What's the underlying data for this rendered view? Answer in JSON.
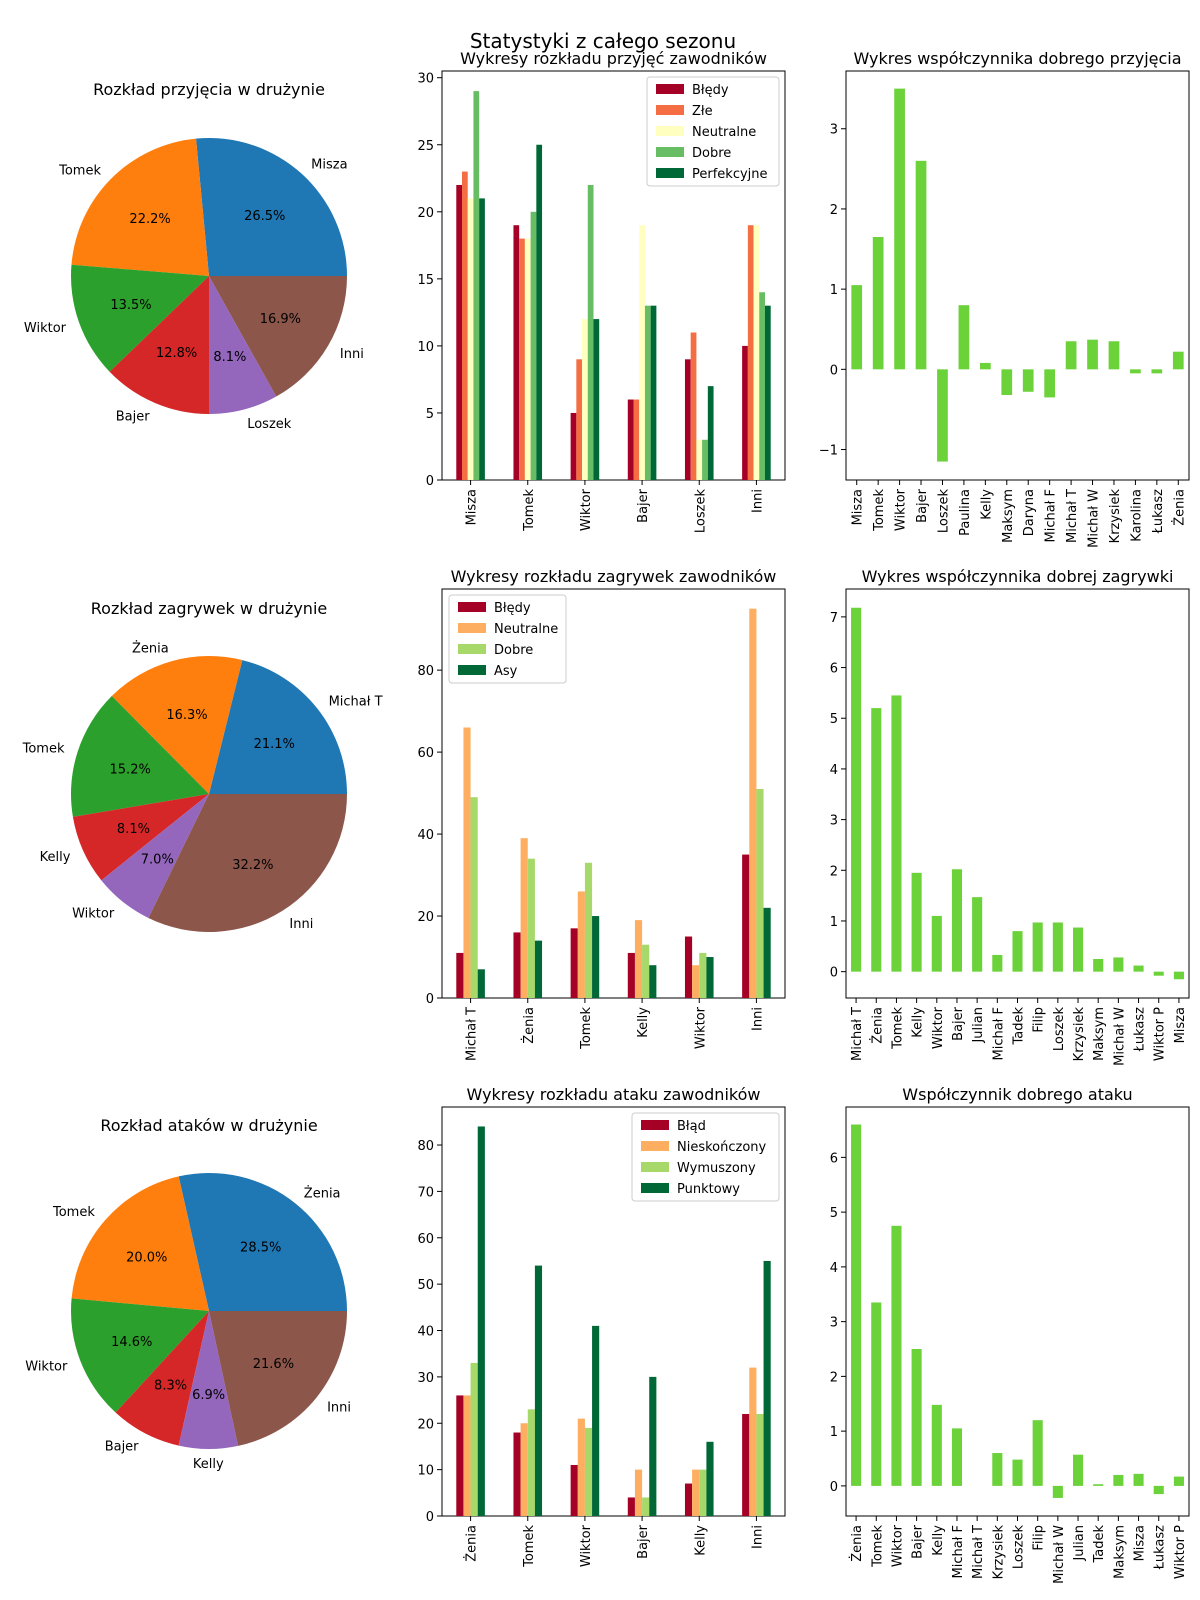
{
  "figure": {
    "suptitle": "Statystyki z całego sezonu"
  },
  "colors": {
    "pie": [
      "#1f77b4",
      "#ff7f0e",
      "#2ca02c",
      "#d62728",
      "#9467bd",
      "#8c564b"
    ],
    "reception": [
      "#a50026",
      "#f46d43",
      "#ffffbf",
      "#66bd63",
      "#006837"
    ],
    "four": [
      "#a50026",
      "#fdae61",
      "#a6d96a",
      "#006837"
    ],
    "coef": "#6bd23a"
  },
  "chart_data": [
    {
      "id": "pie-reception",
      "type": "pie",
      "title": "Rozkład przyjęcia w drużynie",
      "labels": [
        "Misza",
        "Tomek",
        "Wiktor",
        "Bajer",
        "Loszek",
        "Inni"
      ],
      "values": [
        26.5,
        22.2,
        13.5,
        12.8,
        8.1,
        16.9
      ],
      "pct_labels": [
        "26.5%",
        "22.2%",
        "13.5%",
        "12.8%",
        "8.1%",
        "16.9%"
      ]
    },
    {
      "id": "bar-reception",
      "type": "bar",
      "title": "Wykresy rozkładu przyjęć zawodników",
      "categories": [
        "Misza",
        "Tomek",
        "Wiktor",
        "Bajer",
        "Loszek",
        "Inni"
      ],
      "series": [
        {
          "name": "Błędy",
          "values": [
            22,
            19,
            5,
            6,
            9,
            10
          ]
        },
        {
          "name": "Złe",
          "values": [
            23,
            18,
            9,
            6,
            11,
            19
          ]
        },
        {
          "name": "Neutralne",
          "values": [
            21,
            18,
            12,
            19,
            3,
            19
          ]
        },
        {
          "name": "Dobre",
          "values": [
            29,
            20,
            22,
            13,
            3,
            14
          ]
        },
        {
          "name": "Perfekcyjne",
          "values": [
            21,
            25,
            12,
            13,
            7,
            13
          ]
        }
      ],
      "ylim": [
        0,
        30.5
      ],
      "yticks": [
        0,
        5,
        10,
        15,
        20,
        25,
        30
      ],
      "legend": "top-right"
    },
    {
      "id": "coef-reception",
      "type": "bar",
      "title": "Wykres współczynnika dobrego przyjęcia",
      "categories": [
        "Misza",
        "Tomek",
        "Wiktor",
        "Bajer",
        "Loszek",
        "Paulina",
        "Kelly",
        "Maksym",
        "Daryna",
        "Michał F",
        "Michał T",
        "Michał W",
        "Krzysiek",
        "Karolina",
        "Łukasz",
        "Żenia"
      ],
      "values": [
        1.05,
        1.65,
        3.5,
        2.6,
        -1.15,
        0.8,
        0.08,
        -0.32,
        -0.28,
        -0.35,
        0.35,
        0.37,
        0.35,
        -0.05,
        -0.05,
        0.22
      ],
      "ylim": [
        -1.38,
        3.72
      ],
      "yticks": [
        -1,
        0,
        1,
        2,
        3
      ],
      "ytick_labels": [
        "−1",
        "0",
        "1",
        "2",
        "3"
      ]
    },
    {
      "id": "pie-serve",
      "type": "pie",
      "title": "Rozkład zagrywek w drużynie",
      "labels": [
        "Michał T",
        "Żenia",
        "Tomek",
        "Kelly",
        "Wiktor",
        "Inni"
      ],
      "values": [
        21.1,
        16.3,
        15.2,
        8.1,
        7.0,
        32.2
      ],
      "pct_labels": [
        "21.1%",
        "16.3%",
        "15.2%",
        "8.1%",
        "7.0%",
        "32.2%"
      ]
    },
    {
      "id": "bar-serve",
      "type": "bar",
      "title": "Wykresy rozkładu zagrywek zawodników",
      "categories": [
        "Michał T",
        "Żenia",
        "Tomek",
        "Kelly",
        "Wiktor",
        "Inni"
      ],
      "series": [
        {
          "name": "Błędy",
          "values": [
            11,
            16,
            17,
            11,
            15,
            35
          ]
        },
        {
          "name": "Neutralne",
          "values": [
            66,
            39,
            26,
            19,
            8,
            95
          ]
        },
        {
          "name": "Dobre",
          "values": [
            49,
            34,
            33,
            13,
            11,
            51
          ]
        },
        {
          "name": "Asy",
          "values": [
            7,
            14,
            20,
            8,
            10,
            22
          ]
        }
      ],
      "ylim": [
        0,
        99.8
      ],
      "yticks": [
        0,
        20,
        40,
        60,
        80
      ],
      "legend": "top-left"
    },
    {
      "id": "coef-serve",
      "type": "bar",
      "title": "Wykres współczynnika dobrej zagrywki",
      "categories": [
        "Michał T",
        "Żenia",
        "Tomek",
        "Kelly",
        "Wiktor",
        "Bajer",
        "Julian",
        "Michał F",
        "Tadek",
        "Filip",
        "Loszek",
        "Krzysiek",
        "Maksym",
        "Michał W",
        "Łukasz",
        "Wiktor P",
        "Misza"
      ],
      "values": [
        7.18,
        5.2,
        5.45,
        1.95,
        1.1,
        2.02,
        1.47,
        0.33,
        0.8,
        0.97,
        0.97,
        0.87,
        0.25,
        0.28,
        0.12,
        -0.08,
        -0.15
      ],
      "ylim": [
        -0.52,
        7.55
      ],
      "yticks": [
        0,
        1,
        2,
        3,
        4,
        5,
        6,
        7
      ],
      "ytick_labels": [
        "0",
        "1",
        "2",
        "3",
        "4",
        "5",
        "6",
        "7"
      ]
    },
    {
      "id": "pie-attack",
      "type": "pie",
      "title": "Rozkład ataków w drużynie",
      "labels": [
        "Żenia",
        "Tomek",
        "Wiktor",
        "Bajer",
        "Kelly",
        "Inni"
      ],
      "values": [
        28.5,
        20.0,
        14.6,
        8.3,
        6.9,
        21.6
      ],
      "pct_labels": [
        "28.5%",
        "20.0%",
        "14.6%",
        "8.3%",
        "6.9%",
        "21.6%"
      ]
    },
    {
      "id": "bar-attack",
      "type": "bar",
      "title": "Wykresy rozkładu ataku zawodników",
      "categories": [
        "Żenia",
        "Tomek",
        "Wiktor",
        "Bajer",
        "Kelly",
        "Inni"
      ],
      "series": [
        {
          "name": "Błąd",
          "values": [
            26,
            18,
            11,
            4,
            7,
            22
          ]
        },
        {
          "name": "Nieskończony",
          "values": [
            26,
            20,
            21,
            10,
            10,
            32
          ]
        },
        {
          "name": "Wymuszony",
          "values": [
            33,
            23,
            19,
            4,
            10,
            22
          ]
        },
        {
          "name": "Punktowy",
          "values": [
            84,
            54,
            41,
            30,
            16,
            55
          ]
        }
      ],
      "ylim": [
        0,
        88.2
      ],
      "yticks": [
        0,
        10,
        20,
        30,
        40,
        50,
        60,
        70,
        80
      ],
      "legend": "top-right"
    },
    {
      "id": "coef-attack",
      "type": "bar",
      "title": "Współczynnik dobrego ataku",
      "categories": [
        "Żenia",
        "Tomek",
        "Wiktor",
        "Bajer",
        "Kelly",
        "Michał F",
        "Michał T",
        "Krzysiek",
        "Loszek",
        "Filip",
        "Michał W",
        "Julian",
        "Tadek",
        "Maksym",
        "Misza",
        "Łukasz",
        "Wiktor P"
      ],
      "values": [
        6.6,
        3.35,
        4.75,
        2.5,
        1.48,
        1.05,
        0.0,
        0.6,
        0.48,
        1.2,
        -0.22,
        0.57,
        0.03,
        0.2,
        0.22,
        -0.15,
        0.17
      ],
      "ylim": [
        -0.55,
        6.92
      ],
      "yticks": [
        0,
        1,
        2,
        3,
        4,
        5,
        6
      ],
      "ytick_labels": [
        "0",
        "1",
        "2",
        "3",
        "4",
        "5",
        "6"
      ]
    }
  ]
}
